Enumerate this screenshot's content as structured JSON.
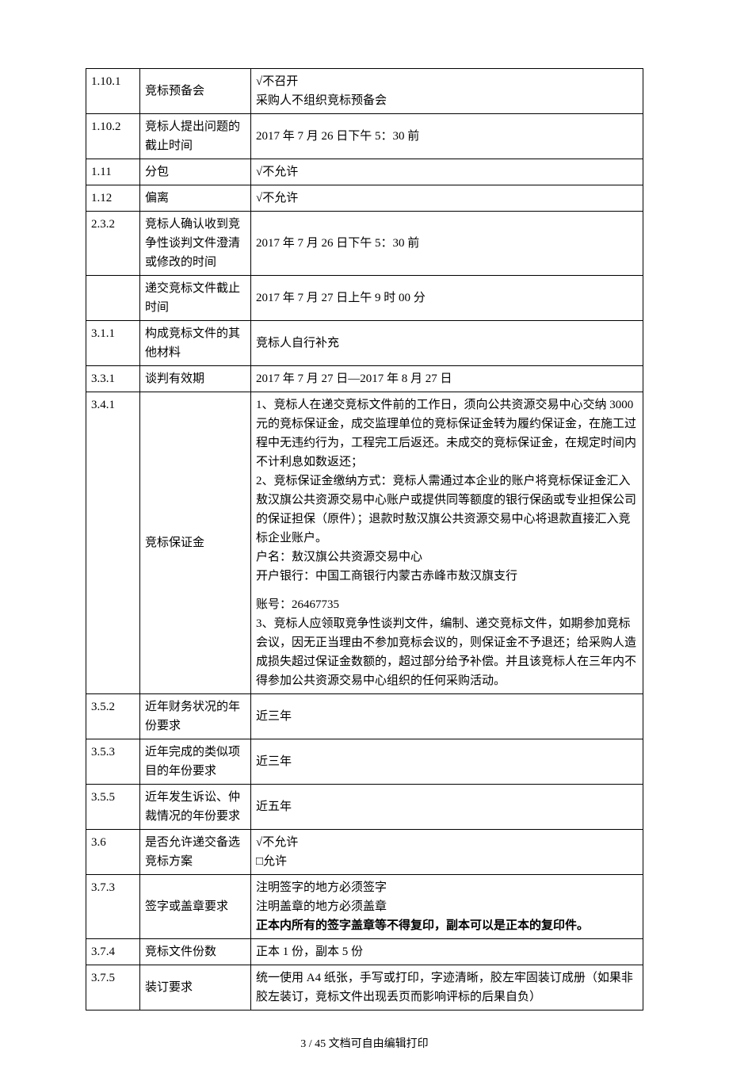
{
  "table": {
    "rows": [
      {
        "num": "1.10.1",
        "label": "竞标预备会",
        "content": [
          {
            "text": "√不召开"
          },
          {
            "text": "采购人不组织竞标预备会"
          }
        ]
      },
      {
        "num": "1.10.2",
        "label": "竞标人提出问题的截止时间",
        "content": [
          {
            "text": "2017 年 7 月 26 日下午 5：30 前"
          }
        ]
      },
      {
        "num": "1.11",
        "label": "分包",
        "content": [
          {
            "text": "√不允许"
          }
        ]
      },
      {
        "num": "1.12",
        "label": "偏离",
        "content": [
          {
            "text": "√不允许"
          }
        ]
      },
      {
        "num": "2.3.2",
        "label": "竞标人确认收到竞争性谈判文件澄清或修改的时间",
        "content": [
          {
            "text": "2017 年 7 月 26 日下午 5：30 前"
          }
        ]
      },
      {
        "num": "",
        "label": "递交竞标文件截止时间",
        "content": [
          {
            "text": "2017 年 7 月 27 日上午 9 时 00 分"
          }
        ]
      },
      {
        "num": "3.1.1",
        "label": "构成竞标文件的其他材料",
        "content": [
          {
            "text": "竞标人自行补充"
          }
        ]
      },
      {
        "num": "3.3.1",
        "label": "谈判有效期",
        "content": [
          {
            "text": "2017 年 7 月 27 日—2017 年 8 月 27 日"
          }
        ]
      },
      {
        "num": "3.4.1",
        "label": "竞标保证金",
        "content": [
          {
            "text": "1、竞标人在递交竞标文件前的工作日，须向公共资源交易中心交纳 3000 元的竞标保证金，成交监理单位的竞标保证金转为履约保证金，在施工过程中无违约行为，工程完工后返还。未成交的竞标保证金，在规定时间内不计利息如数返还；"
          },
          {
            "text": "2、竞标保证金缴纳方式：竞标人需通过本企业的账户将竞标保证金汇入敖汉旗公共资源交易中心账户或提供同等额度的银行保函或专业担保公司的保证担保（原件）；退款时敖汉旗公共资源交易中心将退款直接汇入竞标企业账户。"
          },
          {
            "text": "户名：敖汉旗公共资源交易中心"
          },
          {
            "text": "开户银行：中国工商银行内蒙古赤峰市敖汉旗支行"
          },
          {
            "text": "账号：26467735",
            "gap": true
          },
          {
            "text": "3、竞标人应领取竞争性谈判文件，编制、递交竞标文件，如期参加竞标会议，因无正当理由不参加竞标会议的，则保证金不予退还；给采购人造成损失超过保证金数额的，超过部分给予补偿。并且该竞标人在三年内不得参加公共资源交易中心组织的任何采购活动。"
          }
        ]
      },
      {
        "num": "3.5.2",
        "label": "近年财务状况的年份要求",
        "content": [
          {
            "text": "近三年"
          }
        ]
      },
      {
        "num": "3.5.3",
        "label": "近年完成的类似项目的年份要求",
        "content": [
          {
            "text": "近三年"
          }
        ]
      },
      {
        "num": "3.5.5",
        "label": "近年发生诉讼、仲裁情况的年份要求",
        "content": [
          {
            "text": "近五年"
          }
        ]
      },
      {
        "num": "3.6",
        "label": "是否允许递交备选竞标方案",
        "content": [
          {
            "text": "√不允许"
          },
          {
            "text": "□允许"
          }
        ]
      },
      {
        "num": "3.7.3",
        "label": "签字或盖章要求",
        "content": [
          {
            "text": "注明签字的地方必须签字"
          },
          {
            "text": "注明盖章的地方必须盖章"
          },
          {
            "text": "正本内所有的签字盖章等不得复印，副本可以是正本的复印件。",
            "bold": true
          }
        ]
      },
      {
        "num": "3.7.4",
        "label": "竞标文件份数",
        "content": [
          {
            "text": "正本 1 份，副本 5 份"
          }
        ]
      },
      {
        "num": "3.7.5",
        "label": "装订要求",
        "content": [
          {
            "text": "统一使用 A4 纸张，手写或打印，字迹清晰，胶左牢固装订成册（如果非胶左装订，竞标文件出现丢页而影响评标的后果自负）"
          }
        ]
      }
    ]
  },
  "footer": "3 / 45 文档可自由编辑打印"
}
